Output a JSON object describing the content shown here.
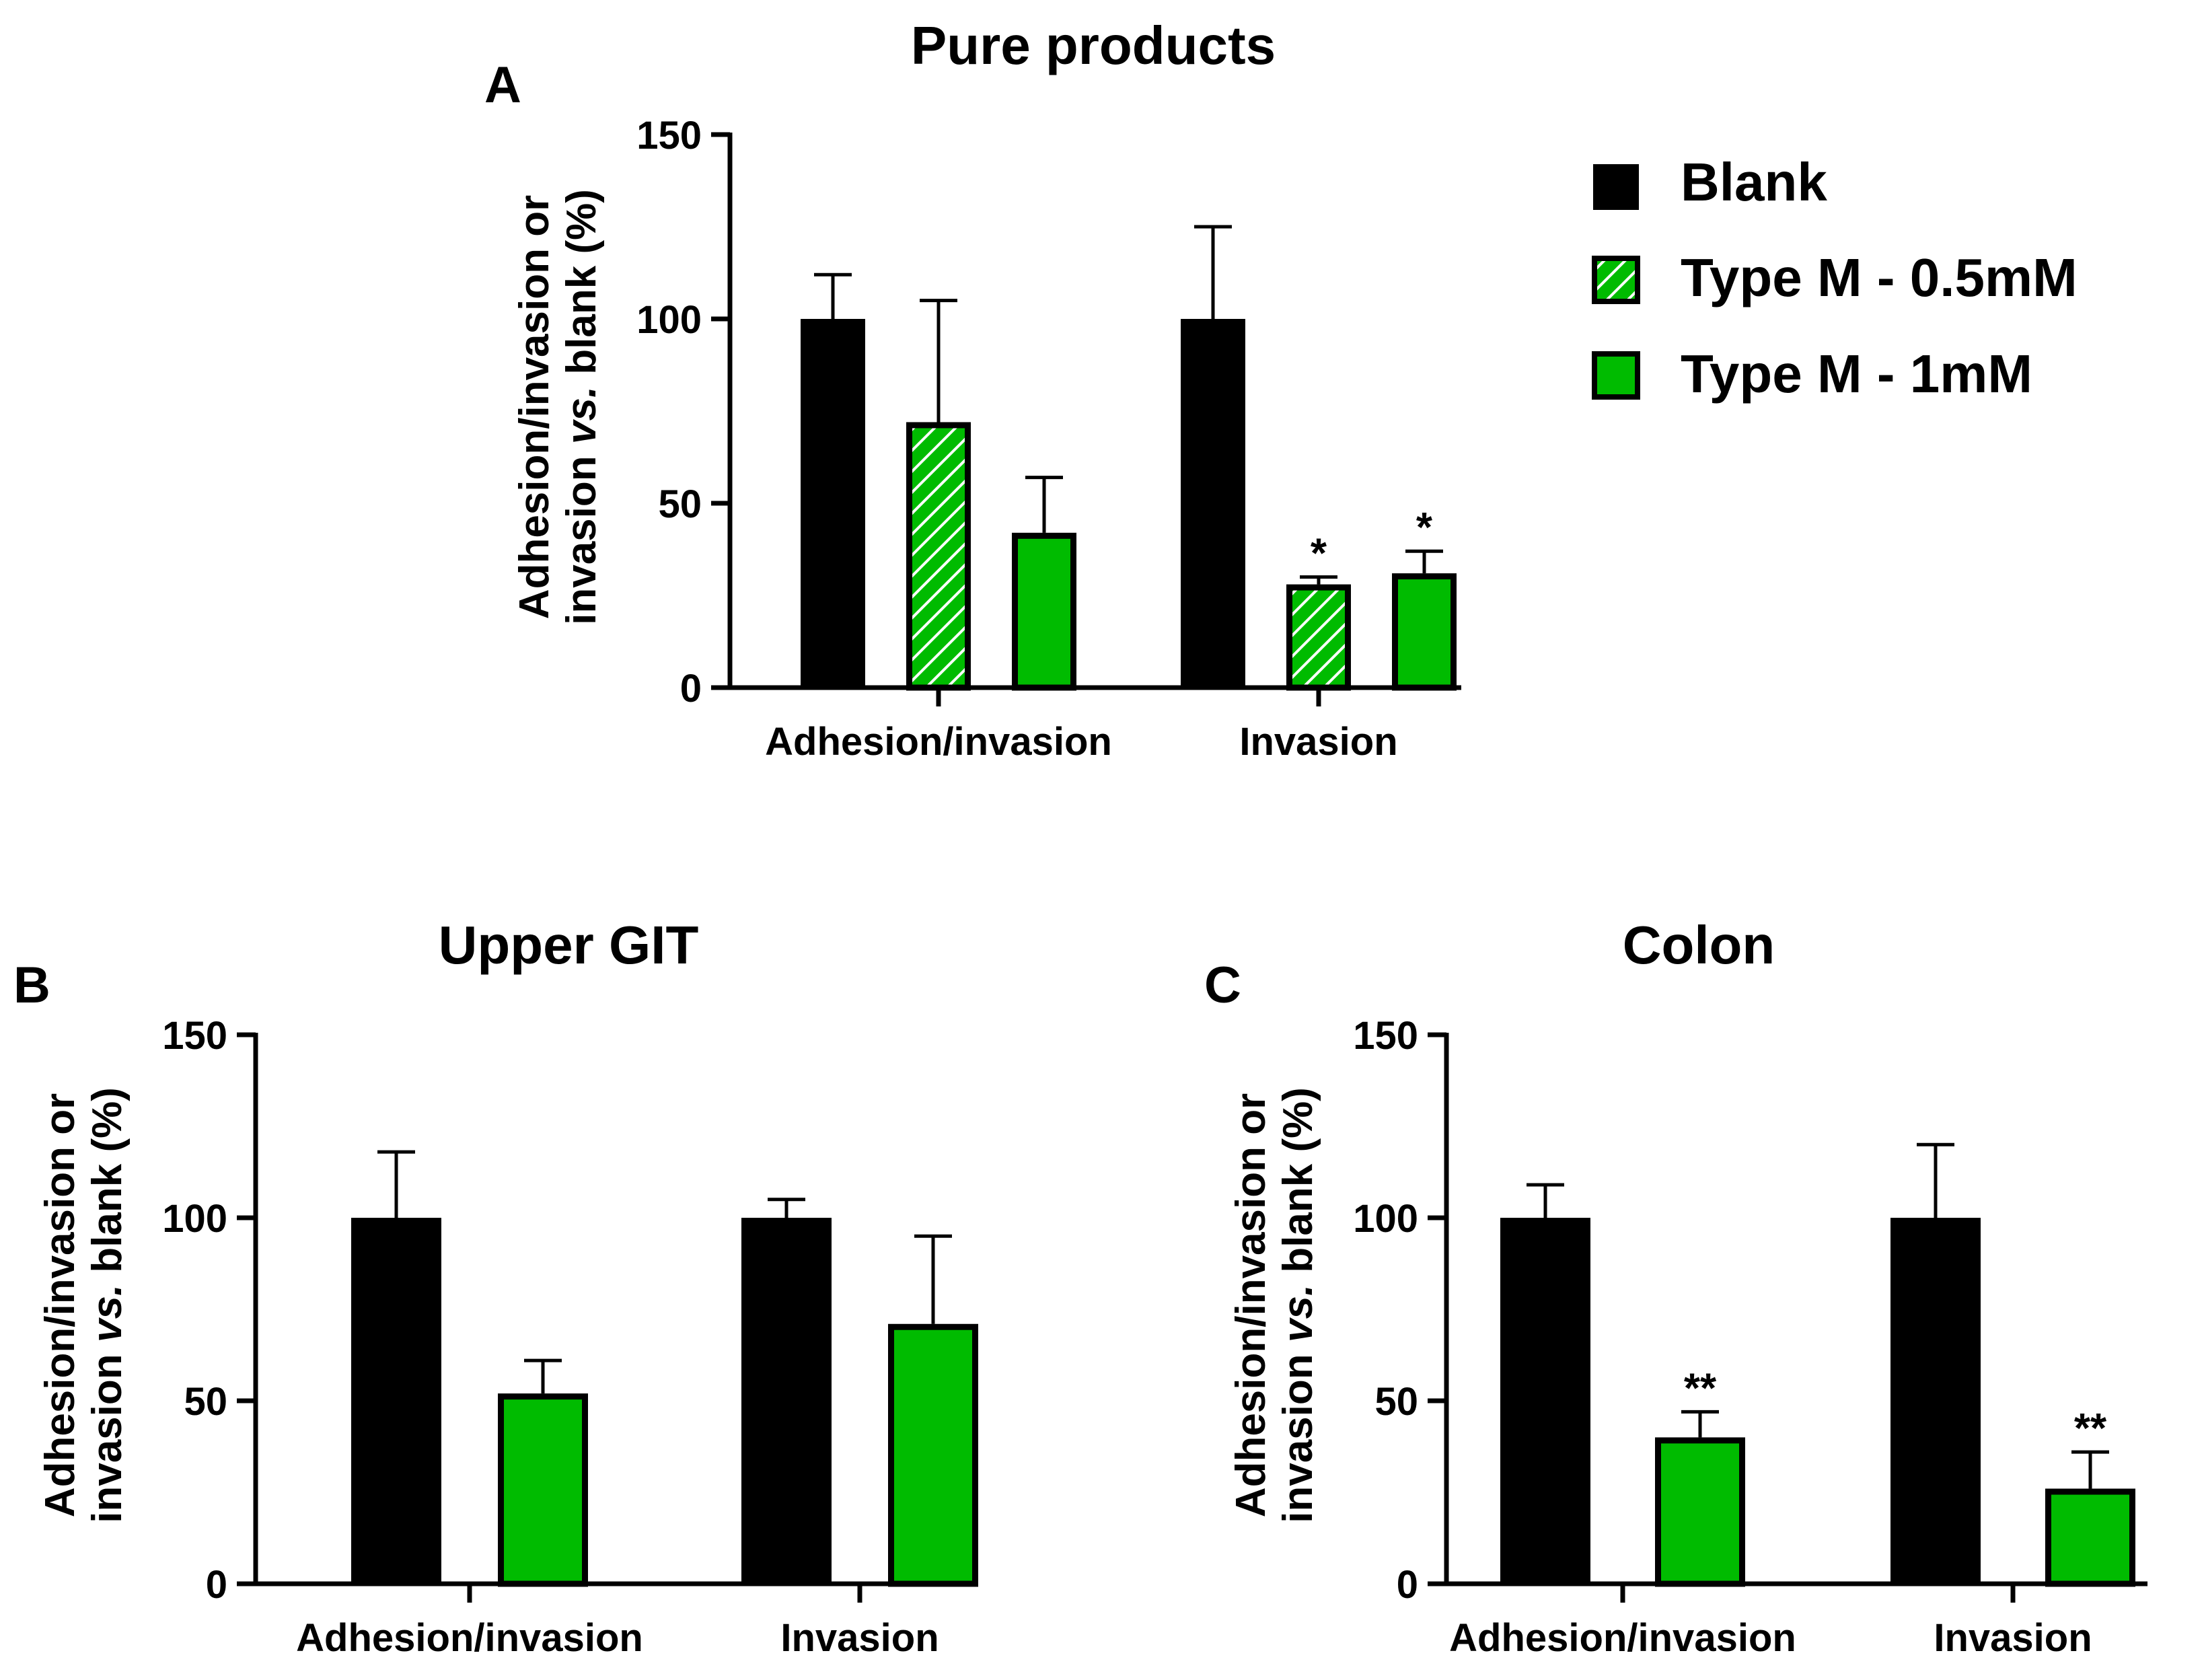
{
  "colors": {
    "blank": "#000000",
    "typeM": "#00BB00",
    "hatch_line": "#ffffff"
  },
  "legend": {
    "items": [
      {
        "label": "Blank",
        "style": "solid-black"
      },
      {
        "label": "Type M - 0.5mM",
        "style": "hatched-green"
      },
      {
        "label": "Type M - 1mM",
        "style": "solid-green"
      }
    ]
  },
  "chart_data": [
    {
      "panel": "A",
      "type": "bar",
      "title": "Pure products",
      "ylabel_line1": "Adhesion/invasion or",
      "ylabel_line2_a": "invasion ",
      "ylabel_line2_b": "vs.",
      "ylabel_line2_c": " blank (%)",
      "ylim": [
        0,
        150
      ],
      "yticks": [
        "0",
        "50",
        "100",
        "150"
      ],
      "categories": [
        "Adhesion/invasion",
        "Invasion"
      ],
      "series": [
        {
          "name": "Blank",
          "style": "solid-black",
          "values": [
            100,
            100
          ],
          "errors": [
            12,
            25
          ],
          "sig": [
            "",
            ""
          ]
        },
        {
          "name": "Type M - 0.5mM",
          "style": "hatched-green",
          "values": [
            72,
            28
          ],
          "errors": [
            33,
            2
          ],
          "sig": [
            "",
            "*"
          ]
        },
        {
          "name": "Type M - 1mM",
          "style": "solid-green",
          "values": [
            42,
            31
          ],
          "errors": [
            15,
            6
          ],
          "sig": [
            "",
            "*"
          ]
        }
      ]
    },
    {
      "panel": "B",
      "type": "bar",
      "title": "Upper GIT",
      "ylabel_line1": "Adhesion/invasion or",
      "ylabel_line2_a": "invasion ",
      "ylabel_line2_b": "vs.",
      "ylabel_line2_c": " blank (%)",
      "ylim": [
        0,
        150
      ],
      "yticks": [
        "0",
        "50",
        "100",
        "150"
      ],
      "categories": [
        "Adhesion/invasion",
        "Invasion"
      ],
      "series": [
        {
          "name": "Blank",
          "style": "solid-black",
          "values": [
            100,
            100
          ],
          "errors": [
            18,
            5
          ],
          "sig": [
            "",
            ""
          ]
        },
        {
          "name": "Type M - 1mM",
          "style": "solid-green",
          "values": [
            52,
            71
          ],
          "errors": [
            9,
            24
          ],
          "sig": [
            "",
            ""
          ]
        }
      ]
    },
    {
      "panel": "C",
      "type": "bar",
      "title": "Colon",
      "ylabel_line1": "Adhesion/invasion or",
      "ylabel_line2_a": "invasion ",
      "ylabel_line2_b": "vs.",
      "ylabel_line2_c": " blank (%)",
      "ylim": [
        0,
        150
      ],
      "yticks": [
        "0",
        "50",
        "100",
        "150"
      ],
      "categories": [
        "Adhesion/invasion",
        "Invasion"
      ],
      "series": [
        {
          "name": "Blank",
          "style": "solid-black",
          "values": [
            100,
            100
          ],
          "errors": [
            9,
            20
          ],
          "sig": [
            "",
            ""
          ]
        },
        {
          "name": "Type M - 1mM",
          "style": "solid-green",
          "values": [
            40,
            26
          ],
          "errors": [
            7,
            10
          ],
          "sig": [
            "**",
            "**"
          ]
        }
      ]
    }
  ]
}
